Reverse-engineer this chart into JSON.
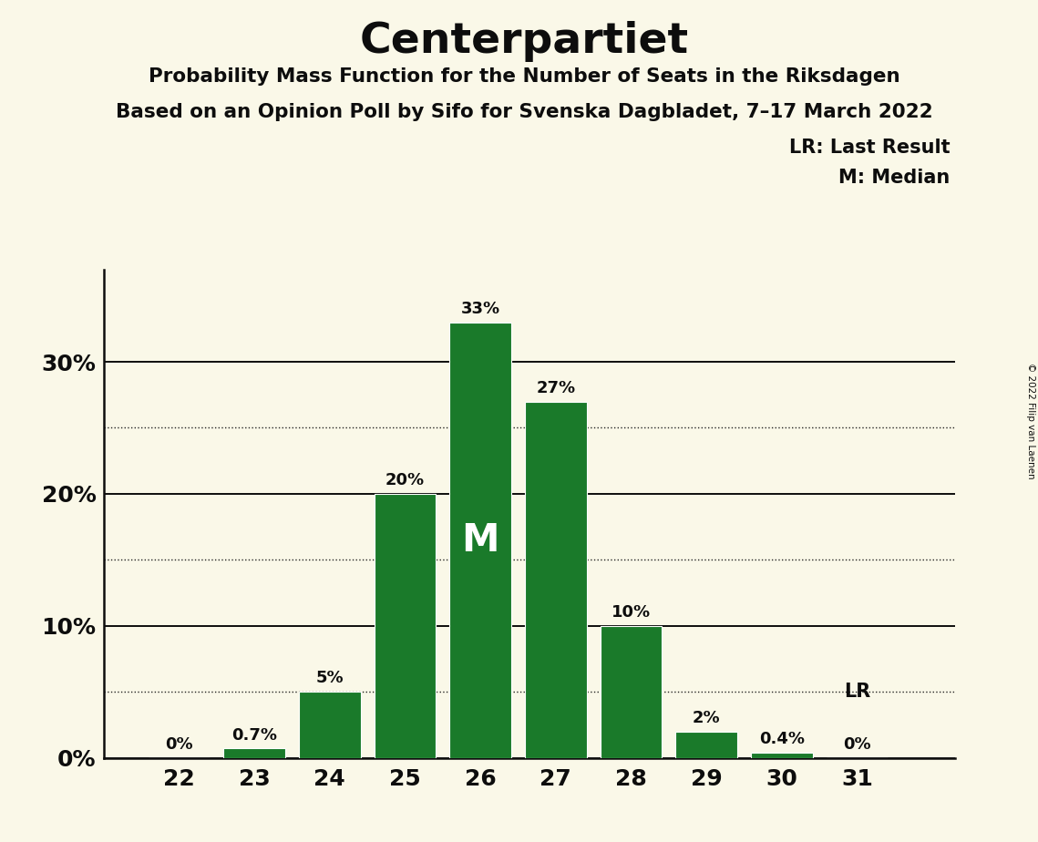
{
  "title": "Centerpartiet",
  "subtitle1": "Probability Mass Function for the Number of Seats in the Riksdagen",
  "subtitle2": "Based on an Opinion Poll by Sifo for Svenska Dagbladet, 7–17 March 2022",
  "copyright": "© 2022 Filip van Laenen",
  "seats": [
    22,
    23,
    24,
    25,
    26,
    27,
    28,
    29,
    30,
    31
  ],
  "probabilities": [
    0.0,
    0.7,
    5.0,
    20.0,
    33.0,
    27.0,
    10.0,
    2.0,
    0.4,
    0.0
  ],
  "bar_color": "#1a7a2a",
  "background_color": "#faf8e8",
  "text_color": "#0d0d0d",
  "median_seat": 26,
  "last_result_seat": 31,
  "yticks": [
    0,
    10,
    20,
    30
  ],
  "ytick_labels": [
    "0%",
    "10%",
    "20%",
    "30%"
  ],
  "dotted_lines": [
    5,
    15,
    25
  ],
  "legend_lr": "LR: Last Result",
  "legend_m": "M: Median",
  "bar_labels": [
    "0%",
    "0.7%",
    "5%",
    "20%",
    "33%",
    "27%",
    "10%",
    "2%",
    "0.4%",
    "0%"
  ],
  "ylim": [
    0,
    37
  ],
  "xlim": [
    21.0,
    32.3
  ]
}
